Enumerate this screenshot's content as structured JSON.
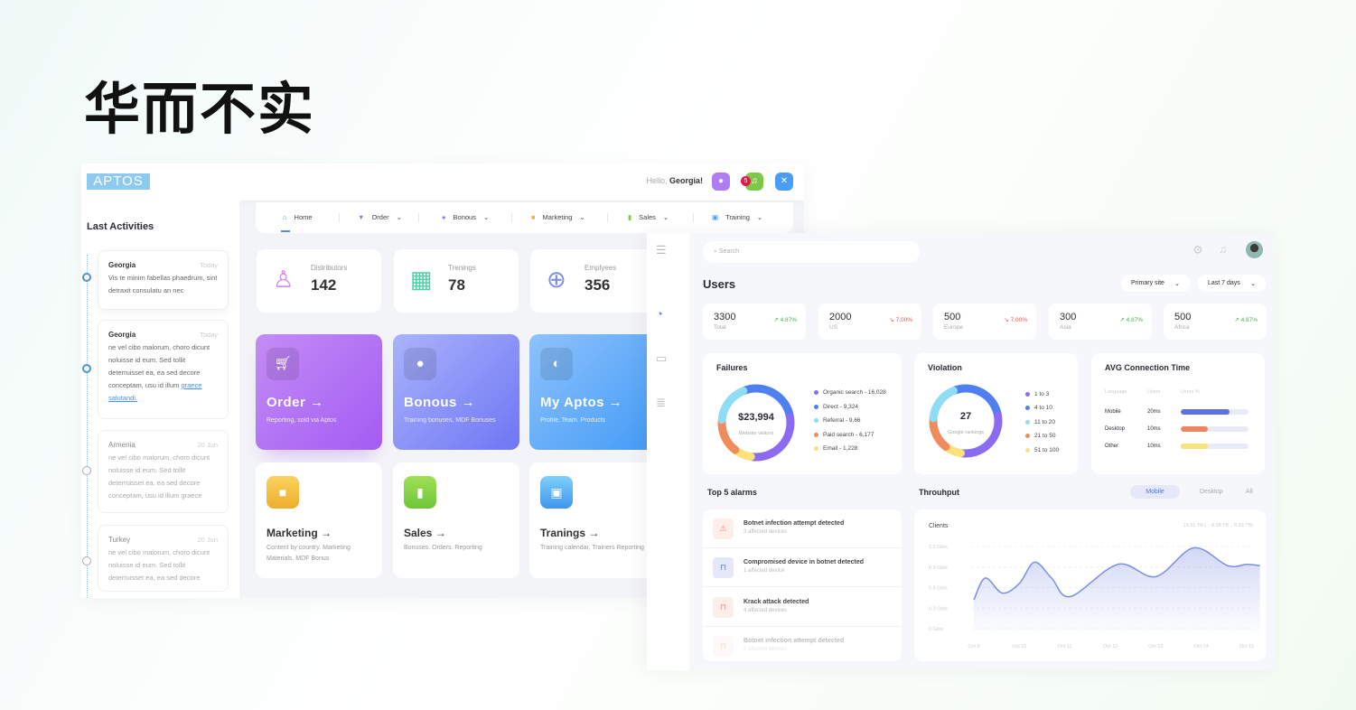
{
  "headline": "华而不实",
  "left": {
    "logo": "APTOS",
    "hello": "Hello,",
    "user": "Georgia!",
    "badge": "5",
    "activities_title": "Last Activities",
    "activities": [
      {
        "name": "Georgia",
        "date": "Today",
        "text": "Vis te minim fabellas phaedrum, sint  detraxit consulatu an nec"
      },
      {
        "name": "Georgia",
        "date": "Today",
        "text": "ne vel cibo malorum, choro dicunt  noluisse id eum. Sed tollit deterruisset ea, ea sed decore conceptam, usu id illum ",
        "link": "graece salutandi."
      },
      {
        "name": "Armenia",
        "date": "20 Jun",
        "text": "ne vel cibo malorum, choro dicunt  noluisse id eum. Sed tollit deterruisset ea, ea sed decore conceptam, usu id illum graece"
      },
      {
        "name": "Turkey",
        "date": "20 Jun",
        "text": "ne vel cibo malorum, choro dicunt  noluisse id eum. Sed tollit deterruisset ea, ea sed decore"
      }
    ],
    "nav": [
      "Home",
      "Order",
      "Bonous",
      "Marketing",
      "Sales",
      "Training"
    ],
    "stats": [
      {
        "label": "Distributors",
        "value": "142"
      },
      {
        "label": "Trenings",
        "value": "78"
      },
      {
        "label": "Emplyees",
        "value": "356"
      }
    ],
    "tiles": [
      {
        "title": "Order",
        "sub": "Reporting, sold via Aptos"
      },
      {
        "title": "Bonous",
        "sub": "Training bonuses, MDF Bonuses"
      },
      {
        "title": "My Aptos",
        "sub": "Profile. Team. Products"
      },
      {
        "title": "Marketing",
        "sub": "Content by country. Marketing Materials. MDF Bonus"
      },
      {
        "title": "Sales",
        "sub": "Bonuses. Orders. Reporting"
      },
      {
        "title": "Tranings",
        "sub": "Training calendar, Trainers Reporting"
      }
    ],
    "arrow": "→"
  },
  "right": {
    "search_placeholder": "Search",
    "title": "Users",
    "site": "Primary site",
    "range": "Last 7 days",
    "stats": [
      {
        "value": "3300",
        "label": "Total",
        "pct": "4.87%",
        "trend": "up"
      },
      {
        "value": "2000",
        "label": "US",
        "pct": "7.00%",
        "trend": "down"
      },
      {
        "value": "500",
        "label": "Europe",
        "pct": "7.00%",
        "trend": "down"
      },
      {
        "value": "300",
        "label": "Asia",
        "pct": "4.87%",
        "trend": "up"
      },
      {
        "value": "500",
        "label": "Africa",
        "pct": "4.87%",
        "trend": "up"
      }
    ],
    "failures": {
      "title": "Failures",
      "center": "$23,994",
      "center_sub": "Website visitors",
      "legend": [
        "Organic search - 16,028",
        "Direct - 9,324",
        "Referral - 9,66",
        "Paid search - 6,177",
        "Email - 1,228"
      ]
    },
    "violation": {
      "title": "Violation",
      "center": "27",
      "center_sub": "Google rankings",
      "legend": [
        "1 to 3",
        "4 to 10",
        "11 to 20",
        "21 to 50",
        "51 to 100"
      ]
    },
    "donut_colors": [
      "#8b6cf0",
      "#4f7ff0",
      "#8fdcf5",
      "#f08c5c",
      "#fbe27a"
    ],
    "donut_share_pct": [
      30,
      28,
      18,
      16,
      8
    ],
    "avg": {
      "title": "AVG Connection Time",
      "headers": [
        "Language",
        "Users",
        "Users %"
      ],
      "rows": [
        {
          "name": "Mobile",
          "users": "20ms",
          "pct": 72,
          "color": "#5b73e0"
        },
        {
          "name": "Desktop",
          "users": "10ms",
          "pct": 40,
          "color": "#ec8560"
        },
        {
          "name": "Other",
          "users": "10ms",
          "pct": 40,
          "color": "#f8e27a"
        }
      ]
    },
    "alarms_title": "Top 5 alarms",
    "alarms": [
      {
        "title": "Botnet infection attempt detected",
        "sub": "2 affected devices",
        "icon": "warning-icon"
      },
      {
        "title": "Compromised device in botnet detected",
        "sub": "1 affected device",
        "icon": "lock-icon"
      },
      {
        "title": "Krack attack detected",
        "sub": "4 affected devices",
        "icon": "lock-icon"
      },
      {
        "title": "Botnet infection attempt detected",
        "sub": "2 affected devices",
        "icon": "lock-icon"
      }
    ],
    "throughput_title": "Throuhput",
    "tabs": [
      "Mobile",
      "Desktop",
      "All"
    ],
    "active_tab": "Mobile"
  },
  "chart_data": {
    "type": "area",
    "title": "Clients",
    "summary": "16.91 TB ( ↑ 8.58 TB ↓ 8.33 TB)",
    "yticks": [
      "1.2 Gb/s",
      "0.9 Gb/s",
      "0.6 Gb/s",
      "0.3 Gb/s",
      "0 Gb/s"
    ],
    "ylim": [
      0,
      1.2
    ],
    "xticks": [
      "Oct 9",
      "Oct 10",
      "Oct 11",
      "Oct 12",
      "Oct 13",
      "Oct 14",
      "Oct 15"
    ],
    "points": [
      [
        "Oct 9 00:00",
        0.42
      ],
      [
        "Oct 9 06:00",
        0.74
      ],
      [
        "Oct 9 15:00",
        0.52
      ],
      [
        "Oct 10 00:00",
        0.66
      ],
      [
        "Oct 10 08:00",
        0.97
      ],
      [
        "Oct 10 17:00",
        0.74
      ],
      [
        "Oct 11 03:00",
        0.47
      ],
      [
        "Oct 12 04:00",
        0.94
      ],
      [
        "Oct 13 00:00",
        0.76
      ],
      [
        "Oct 13 20:00",
        1.18
      ],
      [
        "Oct 14 14:00",
        0.92
      ],
      [
        "Oct 15 00:00",
        0.94
      ],
      [
        "Oct 15 07:00",
        0.92
      ]
    ],
    "color": "#7b8fe3",
    "grid": true
  }
}
